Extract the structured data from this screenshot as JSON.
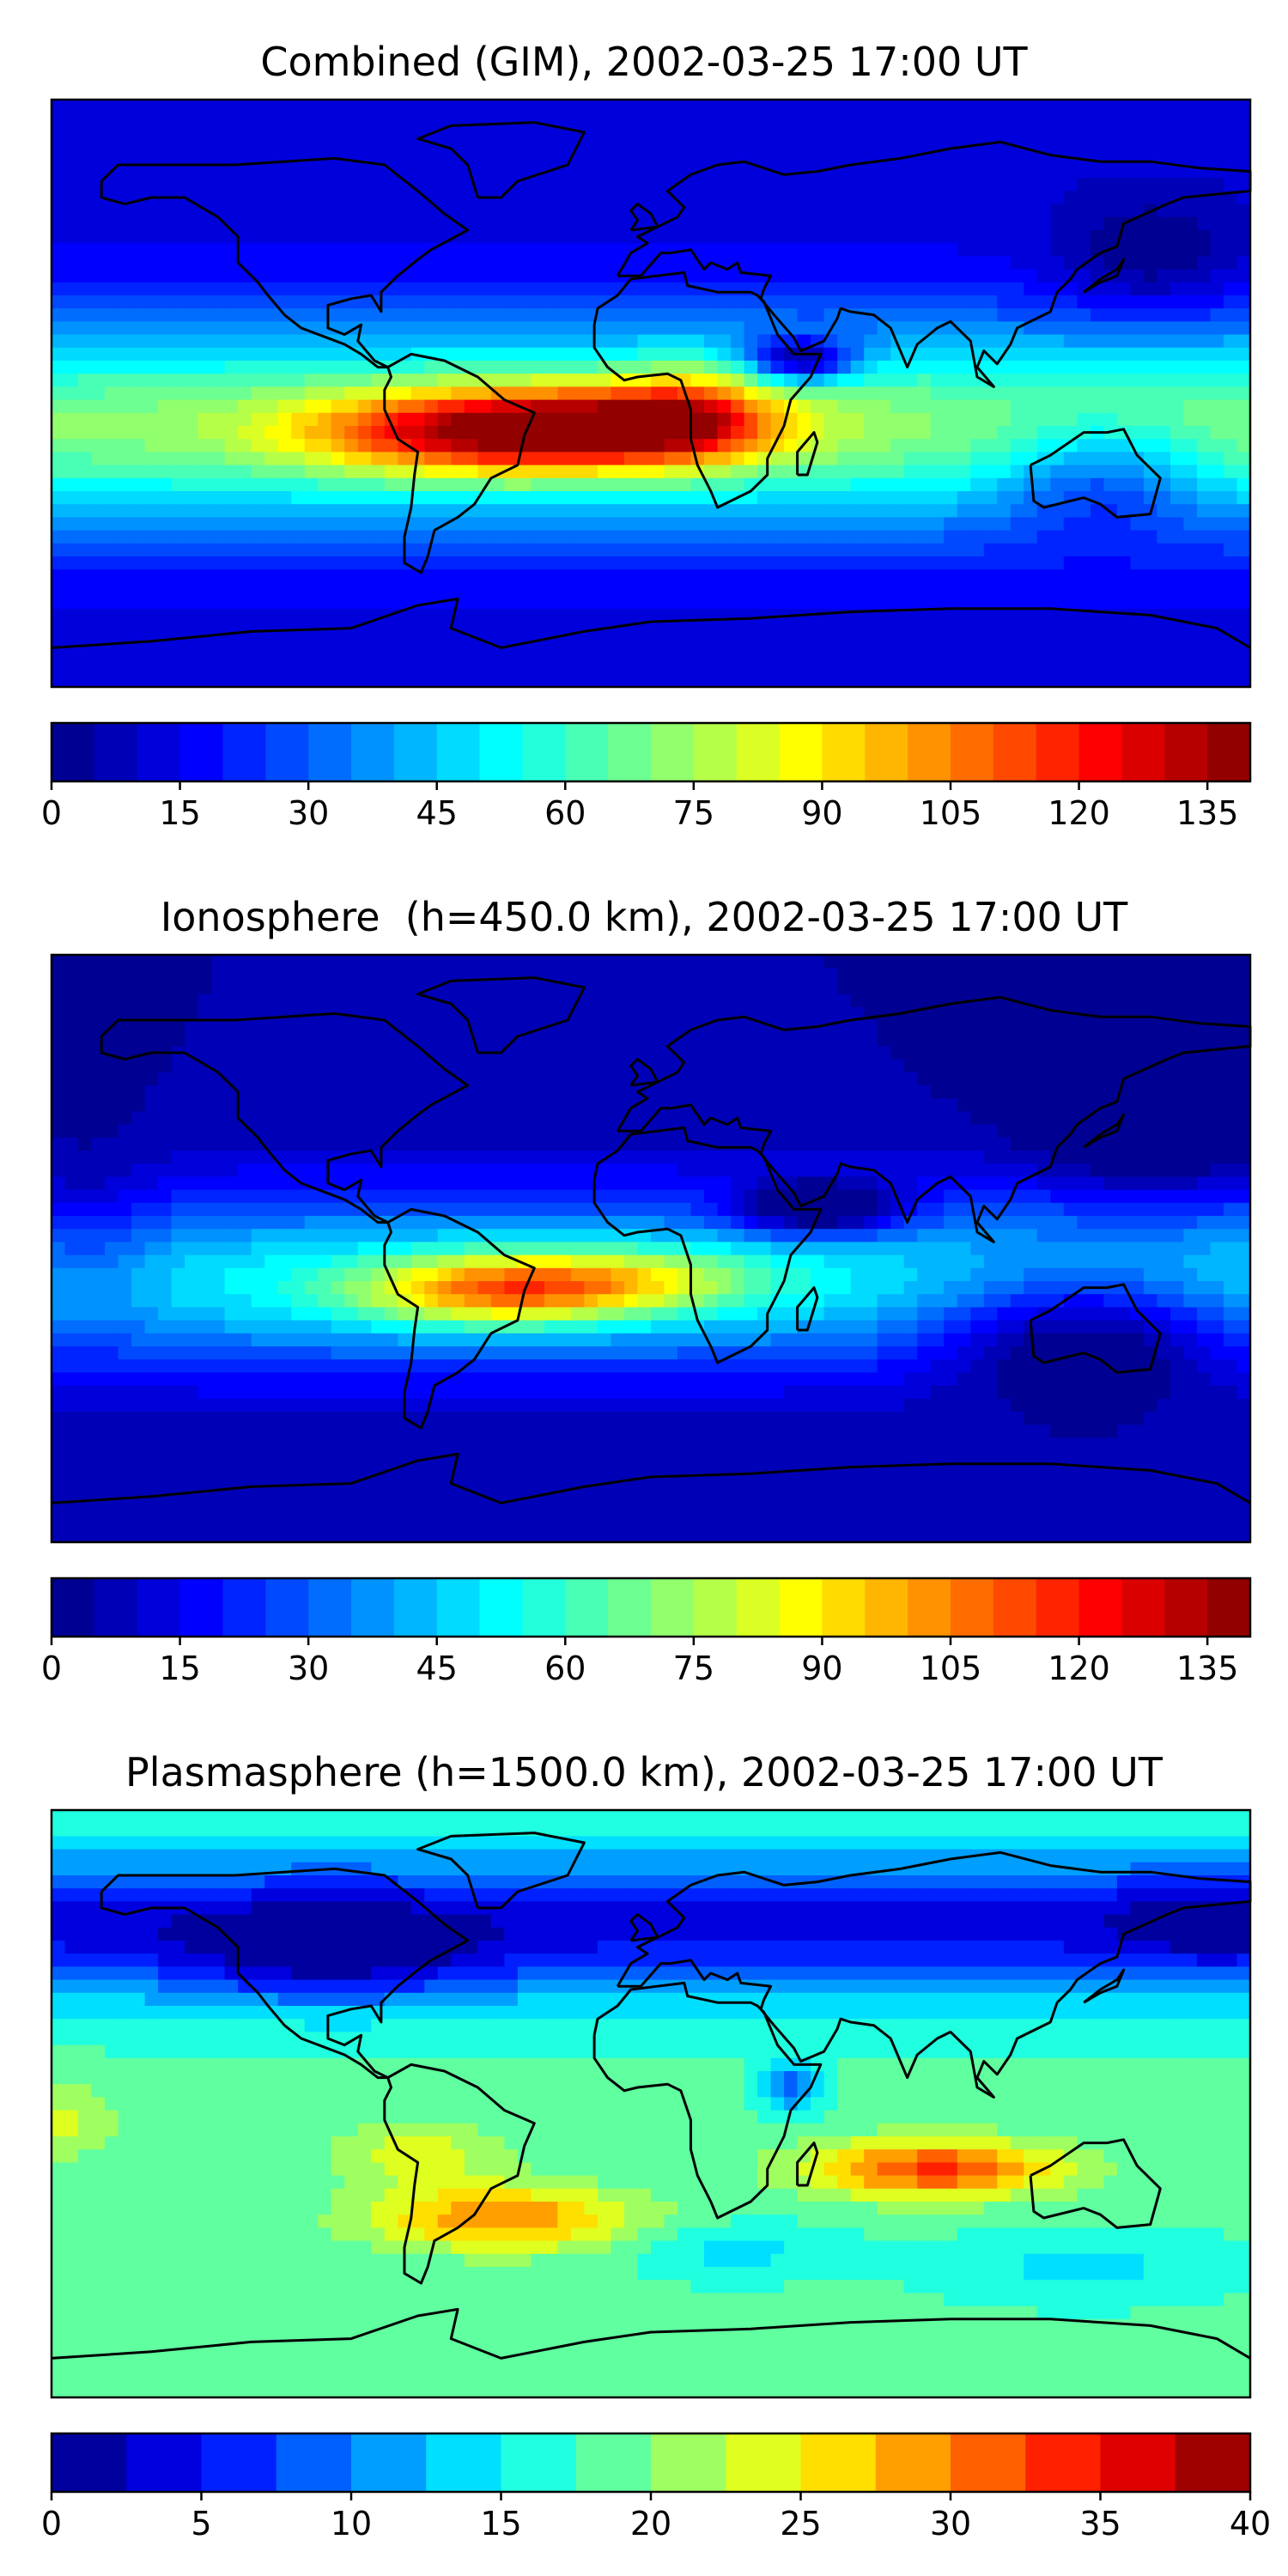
{
  "chart_data": [
    {
      "type": "heatmap",
      "title": "Combined (GIM), 2002-03-25 17:00 UT",
      "map": "world coastlines, equirectangular",
      "colormap": "jet",
      "colorbar": {
        "min": 0,
        "max": 140,
        "levels": 28,
        "ticks": [
          0,
          15,
          30,
          45,
          60,
          75,
          90,
          105,
          120,
          135
        ]
      },
      "features": [
        {
          "region": "South America / South Atlantic equatorial crest",
          "value": 135
        },
        {
          "region": "central Africa",
          "value": 115
        },
        {
          "region": "East Africa / Horn of Africa",
          "value": 20
        },
        {
          "region": "Indian Ocean",
          "value": 60
        },
        {
          "region": "Australia",
          "value": 35
        },
        {
          "region": "high latitudes",
          "value": 10
        }
      ]
    },
    {
      "type": "heatmap",
      "title": "Ionosphere  (h=450.0 km), 2002-03-25 17:00 UT",
      "map": "world coastlines, equirectangular",
      "colormap": "jet",
      "colorbar": {
        "min": 0,
        "max": 140,
        "levels": 28,
        "ticks": [
          0,
          15,
          30,
          45,
          60,
          75,
          90,
          105,
          120,
          135
        ]
      },
      "features": [
        {
          "region": "central Brazil",
          "value": 105
        },
        {
          "region": "South Atlantic equatorial crest",
          "value": 95
        },
        {
          "region": "East Africa / Arabian Sea",
          "value": 5
        },
        {
          "region": "Indian Ocean",
          "value": 35
        },
        {
          "region": "Australia",
          "value": 10
        },
        {
          "region": "high latitudes",
          "value": 5
        }
      ]
    },
    {
      "type": "heatmap",
      "title": "Plasmasphere (h=1500.0 km), 2002-03-25 17:00 UT",
      "map": "world coastlines, equirectangular",
      "colormap": "jet",
      "colorbar": {
        "min": 0,
        "max": 40,
        "levels": 16,
        "ticks": [
          0,
          5,
          10,
          15,
          20,
          25,
          30,
          35,
          40
        ]
      },
      "features": [
        {
          "region": "South Indian Ocean",
          "value": 33
        },
        {
          "region": "South Atlantic / Argentina",
          "value": 31
        },
        {
          "region": "North America",
          "value": 4
        },
        {
          "region": "East Africa",
          "value": 10
        },
        {
          "region": "Southern Ocean",
          "value": 20
        },
        {
          "region": "North Pacific",
          "value": 5
        }
      ]
    }
  ]
}
